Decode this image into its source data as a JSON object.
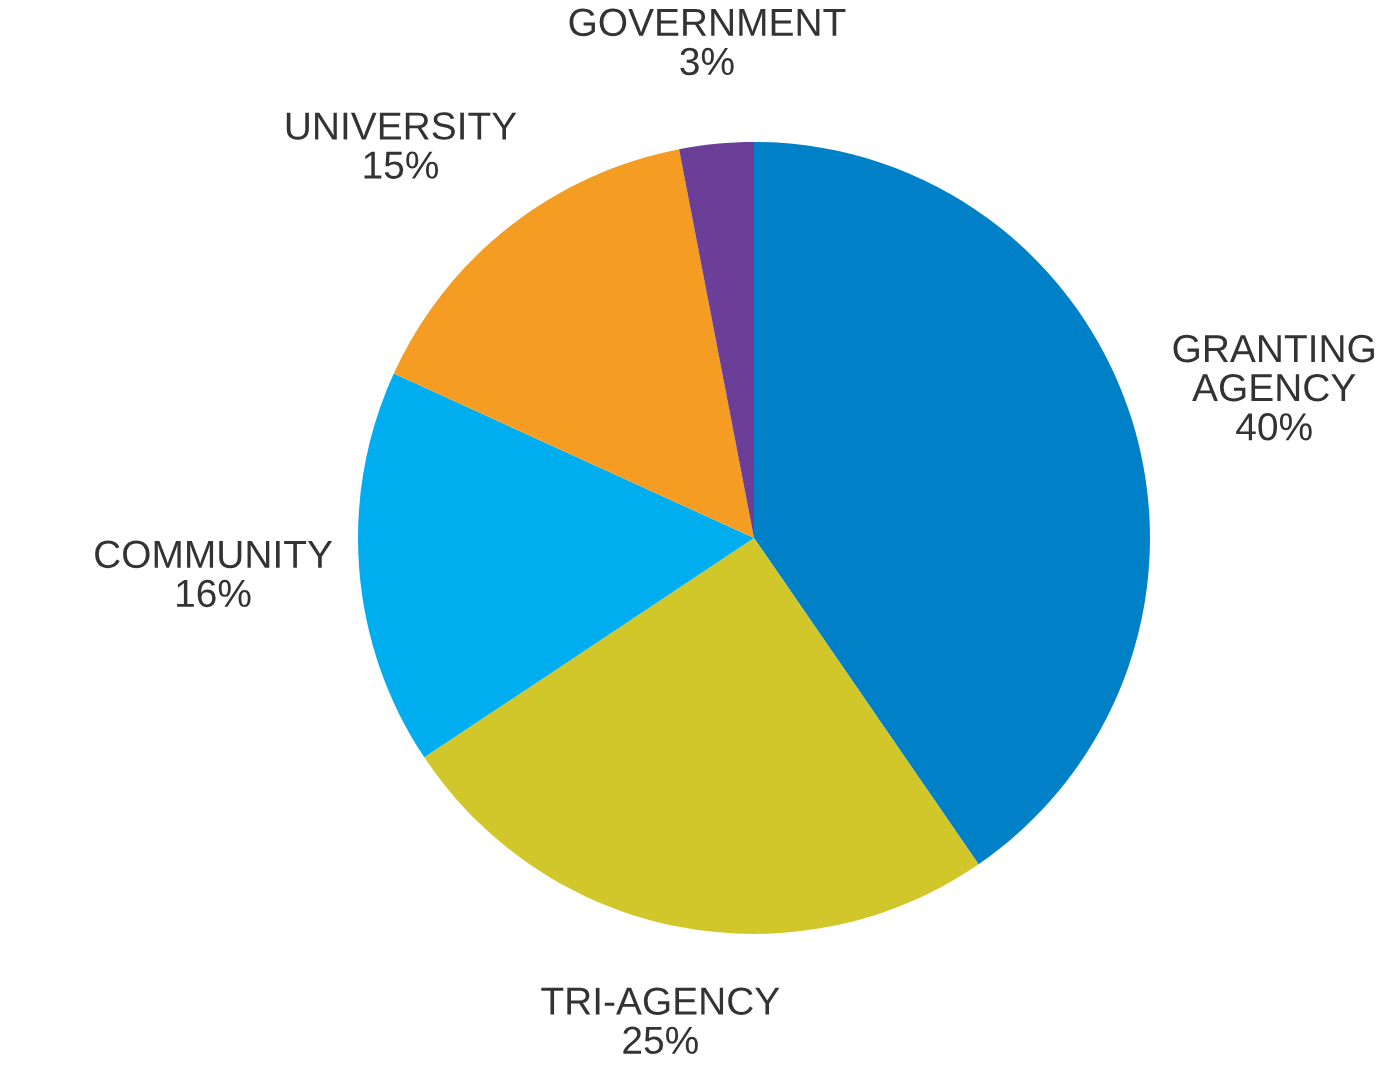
{
  "chart_data": {
    "type": "pie",
    "categories": [
      "GRANTING AGENCY",
      "TRI-AGENCY",
      "COMMUNITY",
      "UNIVERSITY",
      "GOVERNMENT"
    ],
    "values": [
      40,
      25,
      16,
      15,
      3
    ],
    "value_labels": [
      "40%",
      "25%",
      "16%",
      "15%",
      "3%"
    ],
    "colors": [
      "#0080c6",
      "#d2c72a",
      "#00aeef",
      "#f59c23",
      "#6b3f98"
    ]
  }
}
